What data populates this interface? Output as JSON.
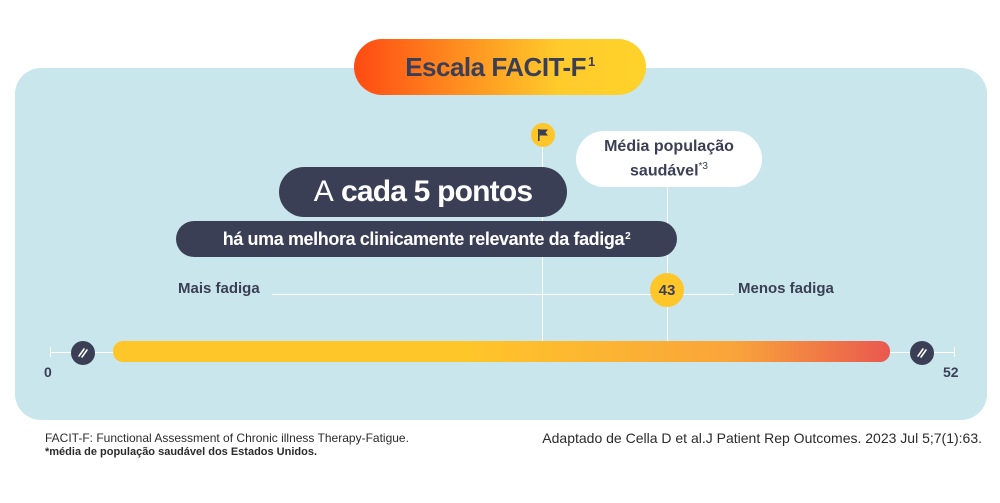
{
  "title": {
    "text": "Escala FACIT-F",
    "sup": "1"
  },
  "healthy_mean": {
    "line1": "Média população",
    "line2": "saudável",
    "sup": "*3"
  },
  "headline": {
    "prefix": "A",
    "bold": "cada 5 pontos"
  },
  "subline": {
    "text": "há uma melhora clinicamente relevante da fadiga",
    "sup": "2"
  },
  "labels": {
    "left": "Mais fadiga",
    "right": "Menos fadiga"
  },
  "scale": {
    "min": "0",
    "max": "52",
    "value": "43"
  },
  "icons": {
    "flag": "flag-icon",
    "min_marker": "slash-icon",
    "max_marker": "slash-icon"
  },
  "colors": {
    "panel": "#c9e6ec",
    "dark": "#3b3f55",
    "yellow": "#ffc62a",
    "orange_red": "#ff4a12"
  },
  "footnotes": {
    "abbrev": "FACIT-F: Functional Assessment of Chronic illness Therapy-Fatigue.",
    "asterisk": "*média de população saudável dos Estados Unidos.",
    "source": "Adaptado de Cella D et al.J Patient Rep Outcomes. 2023 Jul 5;7(1):63."
  }
}
